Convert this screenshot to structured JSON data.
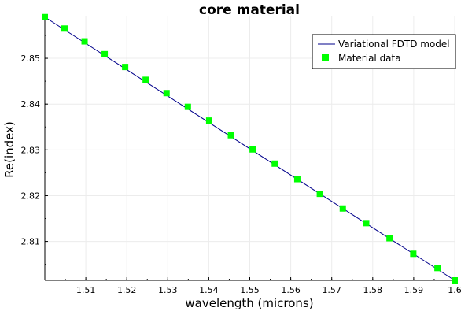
{
  "chart_data": {
    "type": "line",
    "title": "core material",
    "xlabel": "wavelength (microns)",
    "ylabel": "Re(index)",
    "xlim": [
      1.5,
      1.6
    ],
    "ylim": [
      2.8015,
      2.8593
    ],
    "xticks": [
      1.51,
      1.52,
      1.53,
      1.54,
      1.55,
      1.56,
      1.57,
      1.58,
      1.59,
      1.6
    ],
    "xtick_labels": [
      "1.51",
      "1.52",
      "1.53",
      "1.54",
      "1.55",
      "1.56",
      "1.57",
      "1.58",
      "1.59",
      "1.6"
    ],
    "yticks": [
      2.81,
      2.82,
      2.83,
      2.84,
      2.85
    ],
    "ytick_labels": [
      "2.81",
      "2.82",
      "2.83",
      "2.84",
      "2.85"
    ],
    "grid": true,
    "legend": "top-right",
    "series": [
      {
        "name": "Variational FDTD model",
        "kind": "line",
        "color": "#00008b",
        "x": [
          1.5,
          1.6
        ],
        "y": [
          2.859,
          2.8015
        ]
      },
      {
        "name": "Material data",
        "kind": "scatter",
        "color": "#00ff00",
        "x": [
          1.5,
          1.5048,
          1.5097,
          1.5146,
          1.5196,
          1.5246,
          1.5297,
          1.5349,
          1.5401,
          1.5454,
          1.5507,
          1.5561,
          1.5616,
          1.5671,
          1.5727,
          1.5784,
          1.5841,
          1.5899,
          1.5958,
          1.6
        ],
        "y": [
          2.859,
          2.8565,
          2.8537,
          2.8509,
          2.8481,
          2.8453,
          2.8424,
          2.8394,
          2.8364,
          2.8332,
          2.8301,
          2.827,
          2.8236,
          2.8204,
          2.8172,
          2.814,
          2.8107,
          2.8073,
          2.8042,
          2.8015
        ]
      }
    ]
  }
}
